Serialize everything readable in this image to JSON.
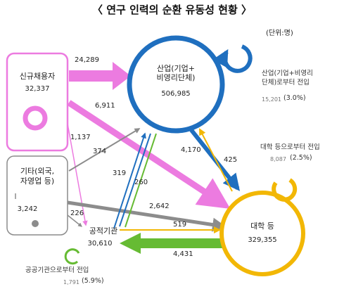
{
  "title": "〈 연구 인력의 순환 유동성 현황 〉",
  "unit": "(단위:명)",
  "colors": {
    "new_hire": "#ec7be0",
    "industry": "#1f6fbf",
    "university": "#f2b705",
    "public": "#66bb33",
    "other": "#8c8c8c"
  },
  "nodes": {
    "new_hire": {
      "label": "신규채용자",
      "value": "32,337"
    },
    "industry": {
      "label_line1": "산업(기업+",
      "label_line2": "비영리단체)",
      "value": "506,985"
    },
    "other": {
      "label_line1": "기타(외국,",
      "label_line2": "자영업 등)",
      "value": "3,242"
    },
    "public": {
      "label": "공적기관",
      "value": "30,610"
    },
    "university": {
      "label": "대학 등",
      "value": "329,355"
    }
  },
  "flows": {
    "new_to_industry": "24,289",
    "new_to_university": "6,911",
    "new_to_public": "1,137",
    "other_to_industry": "374",
    "public_to_industry": "319",
    "industry_to_public": "260",
    "industry_to_university": "4,170",
    "university_to_industry": "425",
    "other_to_university": "2,642",
    "other_to_public": "226",
    "public_to_university": "519",
    "university_to_public": "4,431"
  },
  "self_loops": {
    "industry": {
      "label_line1": "산업(기업+비영리",
      "label_line2": "단체)로부터 전입",
      "value": "15,201",
      "pct": "(3.0%)"
    },
    "university": {
      "label": "대학 등으로부터 전입",
      "value": "8,087",
      "pct": "(2.5%)"
    },
    "public": {
      "label": "공공기관으로부터 전입",
      "value": "1,791",
      "pct": "(5.9%)"
    }
  }
}
